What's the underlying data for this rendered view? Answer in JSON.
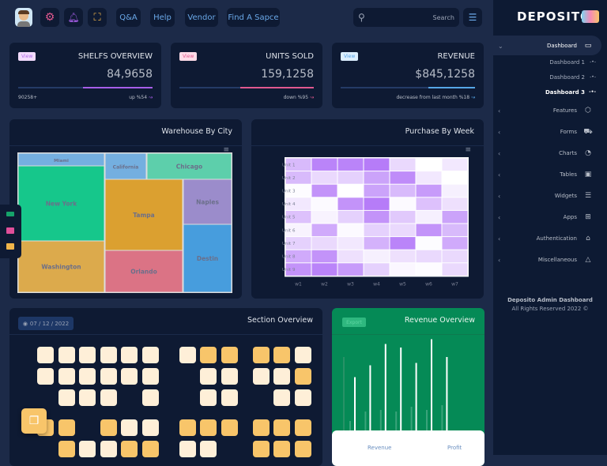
{
  "topbar": {
    "buttons": [
      "Q&A",
      "Help",
      "Vendor",
      "Find A Sapce"
    ],
    "search_placeholder": "Search",
    "icons": [
      "avatar",
      "gear-icon",
      "bell-icon",
      "fullscreen-icon",
      "menu-icon"
    ]
  },
  "stats": [
    {
      "view": "View",
      "title": "SHELFS OVERVIEW",
      "value": "84,9658",
      "left": "90258+",
      "right": "up %54",
      "progress": 0.52,
      "color": "#a65ee8",
      "badge_bg": "#f3dcff",
      "badge_fg": "#b06ae8"
    },
    {
      "view": "View",
      "title": "UNITS SOLD",
      "value": "159,1258",
      "left": "",
      "right": "down %95",
      "progress": 0.55,
      "color": "#e0588f",
      "badge_bg": "#ffdce8",
      "badge_fg": "#e0588f"
    },
    {
      "view": "View",
      "title": "REVENUE",
      "value": "$845,1258",
      "left": "",
      "right": "decrease from last month %18",
      "progress": 0.35,
      "color": "#56a6e6",
      "badge_bg": "#dcefff",
      "badge_fg": "#56a6e6"
    }
  ],
  "warehouse": {
    "title": "Warehouse By City",
    "chart_data": {
      "type": "treemap",
      "items": [
        {
          "label": "Miami",
          "color": "#74afe0"
        },
        {
          "label": "New York",
          "color": "#16c78b"
        },
        {
          "label": "Washington",
          "color": "#dcaa4c"
        },
        {
          "label": "California",
          "color": "#74afe0"
        },
        {
          "label": "Chicago",
          "color": "#5dcfab"
        },
        {
          "label": "Tampa",
          "color": "#dba030"
        },
        {
          "label": "Orlando",
          "color": "#db7385"
        },
        {
          "label": "Naples",
          "color": "#9b8ccb"
        },
        {
          "label": "Destin",
          "color": "#479ddd"
        }
      ]
    }
  },
  "purchase": {
    "title": "Purchase By Week",
    "chart_data": {
      "type": "heatmap",
      "x": [
        "w1",
        "w2",
        "w3",
        "w4",
        "w5",
        "w6",
        "w7"
      ],
      "y": [
        "Unit 1",
        "Unit 2",
        "Unit 3",
        "Unit 4",
        "Unit 5",
        "Unit 6",
        "Unit 7",
        "Unit 8",
        "Unit 9"
      ],
      "color": "#a965f7",
      "values": [
        [
          45,
          80,
          80,
          85,
          25,
          0,
          15
        ],
        [
          45,
          25,
          30,
          60,
          75,
          15,
          0
        ],
        [
          2,
          70,
          0,
          60,
          45,
          65,
          10
        ],
        [
          15,
          3,
          70,
          85,
          3,
          40,
          20
        ],
        [
          40,
          8,
          30,
          70,
          35,
          10,
          60
        ],
        [
          8,
          55,
          3,
          30,
          25,
          70,
          45
        ],
        [
          30,
          25,
          15,
          50,
          80,
          2,
          55
        ],
        [
          55,
          70,
          20,
          10,
          20,
          25,
          25
        ],
        [
          70,
          80,
          65,
          30,
          5,
          2,
          25
        ]
      ]
    }
  },
  "section": {
    "title": "Section Overview",
    "date": "07 / 12 / 2022",
    "seats": [
      "llllll|loo|ool",
      "llllll|.ll|llo",
      ".lll.l|.ll|.ll",
      "oo.oll|ooo|ooo",
      ".olloo|ll.|ooo"
    ],
    "colors": {
      "l": "#feefd8",
      "o": "#f8c56a"
    }
  },
  "revenue": {
    "title": "Revenue Overview",
    "export": "Export",
    "legend": [
      "Revenue",
      "Profit"
    ],
    "chart_data": {
      "type": "bar",
      "series": [
        {
          "name": "Revenue",
          "values": [
            45,
            55,
            73,
            70,
            57,
            77,
            62
          ]
        },
        {
          "name": "Profit",
          "values": [
            12,
            24,
            26,
            24,
            30,
            26,
            32
          ]
        }
      ]
    }
  },
  "sidebar": {
    "logo": "DEPOSITO",
    "items": [
      {
        "label": "Dashboard",
        "icon": "monitor-icon",
        "glyph": "▭"
      },
      {
        "label": "Features",
        "icon": "box-icon",
        "glyph": "⬡"
      },
      {
        "label": "Forms",
        "icon": "truck-icon",
        "glyph": "⛟"
      },
      {
        "label": "Charts",
        "icon": "pie-chart-icon",
        "glyph": "◔"
      },
      {
        "label": "Tables",
        "icon": "table-icon",
        "glyph": "▣"
      },
      {
        "label": "Widgets",
        "icon": "widgets-icon",
        "glyph": "☰"
      },
      {
        "label": "Apps",
        "icon": "apps-grid-icon",
        "glyph": "⊞"
      },
      {
        "label": "Authentication",
        "icon": "lock-icon",
        "glyph": "⌂"
      },
      {
        "label": "Miscellaneous",
        "icon": "warning-icon",
        "glyph": "△"
      }
    ],
    "subitems": [
      "Dashboard 1",
      "Dashboard 2",
      "Dashboard 3"
    ],
    "footer1": "Deposito Admin Dashboard",
    "footer2": "All Rights Reserved 2022 ©"
  }
}
